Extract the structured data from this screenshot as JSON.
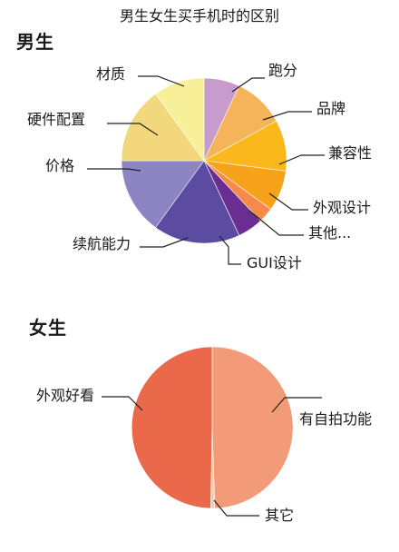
{
  "title": "男生女生买手机时的区别",
  "chart_data": [
    {
      "type": "pie",
      "title": "男生",
      "slices": [
        {
          "label": "跑分",
          "value": 7,
          "color": "#c79ccd"
        },
        {
          "label": "品牌",
          "value": 10,
          "color": "#f5b35a"
        },
        {
          "label": "兼容性",
          "value": 10,
          "color": "#fbb81c"
        },
        {
          "label": "外观设计",
          "value": 8,
          "color": "#f6a21b"
        },
        {
          "label": "其他...",
          "value": 3,
          "color": "#f58a4a"
        },
        {
          "label": "GUI设计",
          "value": 5,
          "color": "#6a2d91"
        },
        {
          "label": "续航能力",
          "value": 17,
          "color": "#5b4ba1"
        },
        {
          "label": "价格",
          "value": 15,
          "color": "#8d84c4"
        },
        {
          "label": "硬件配置",
          "value": 15,
          "color": "#f2d77c"
        },
        {
          "label": "材质",
          "value": 10,
          "color": "#f8f098"
        }
      ]
    },
    {
      "type": "pie",
      "title": "女生",
      "slices": [
        {
          "label": "有自拍功能",
          "value": 49.5,
          "color": "#f39b78"
        },
        {
          "label": "其它",
          "value": 0.8,
          "color": "#f6cfa6"
        },
        {
          "label": "外观好看",
          "value": 49.7,
          "color": "#e9694a"
        }
      ]
    }
  ]
}
